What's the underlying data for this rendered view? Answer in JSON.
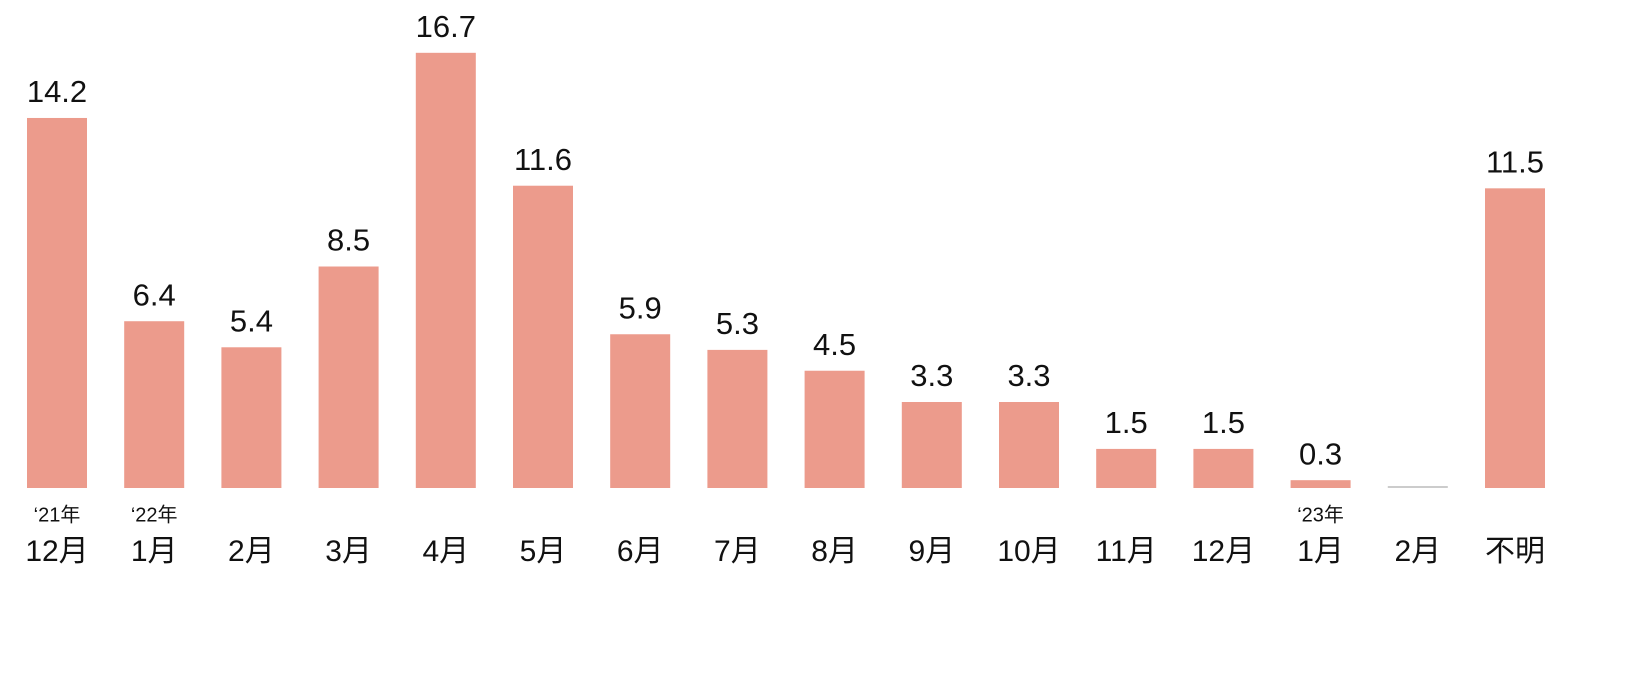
{
  "chart_data": {
    "type": "bar",
    "categories": [
      "12月",
      "1月",
      "2月",
      "3月",
      "4月",
      "5月",
      "6月",
      "7月",
      "8月",
      "9月",
      "10月",
      "11月",
      "12月",
      "1月",
      "2月",
      "不明"
    ],
    "year_labels": [
      "‘21年",
      "‘22年",
      null,
      null,
      null,
      null,
      null,
      null,
      null,
      null,
      null,
      null,
      null,
      "‘23年",
      null,
      null
    ],
    "values": [
      14.2,
      6.4,
      5.4,
      8.5,
      16.7,
      11.6,
      5.9,
      5.3,
      4.5,
      3.3,
      3.3,
      1.5,
      1.5,
      0.3,
      null,
      11.5
    ],
    "color": "#ec9b8c",
    "ylim": [
      0,
      17
    ]
  }
}
